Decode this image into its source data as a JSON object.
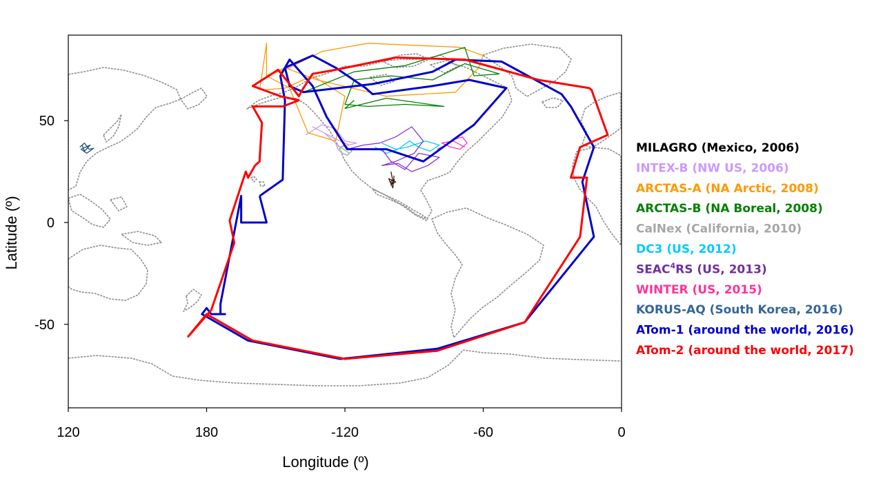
{
  "chart_data": {
    "type": "map",
    "xlabel": "Longitude (º)",
    "ylabel": "Latitude (º)",
    "x_ticks": [
      {
        "value": 120,
        "label": "120"
      },
      {
        "value": 180,
        "label": "180"
      },
      {
        "value": 240,
        "label": "-120"
      },
      {
        "value": 300,
        "label": "-60"
      },
      {
        "value": 360,
        "label": "0"
      }
    ],
    "y_ticks": [
      {
        "value": 50,
        "label": "50"
      },
      {
        "value": 0,
        "label": "0"
      },
      {
        "value": -50,
        "label": "-50"
      }
    ],
    "xlim": [
      120,
      360
    ],
    "ylim": [
      -91,
      92
    ],
    "basemap": "world coastlines (gray)",
    "legend_position": "right",
    "series": [
      {
        "name": "MILAGRO (Mexico, 2006)",
        "color": "#000000",
        "trace_color": "#3b1a0a",
        "lon": [
          260,
          260.5,
          261,
          259.5,
          261.5,
          260,
          262,
          259,
          260.8,
          261.3
        ],
        "lat": [
          25,
          22,
          19,
          20,
          21,
          18.5,
          20,
          21.5,
          17,
          23
        ]
      },
      {
        "name": "INTEX-B (NW US, 2006)",
        "color": "#cc99ff",
        "lon": [
          223,
          230,
          236,
          240,
          245,
          238,
          231,
          226,
          236,
          242
        ],
        "lat": [
          43,
          48,
          46,
          40,
          39,
          37,
          44,
          47,
          41,
          38
        ]
      },
      {
        "name": "ARCTAS-A (NA Arctic, 2008)",
        "color": "#ff9900",
        "lon": [
          203,
          206,
          206,
          216,
          230,
          250,
          290,
          300,
          298,
          288,
          258,
          228,
          214,
          206,
          216,
          224,
          236,
          240,
          226,
          214,
          204
        ],
        "lat": [
          65,
          88,
          72,
          76,
          84,
          88,
          86,
          82,
          76,
          64,
          62,
          70,
          76,
          72,
          66,
          44,
          40,
          62,
          72,
          66,
          65
        ]
      },
      {
        "name": "ARCTAS-B (NA Boreal, 2008)",
        "color": "#008000",
        "lon": [
          222,
          244,
          266,
          292,
          296,
          307,
          292,
          278,
          260,
          244,
          240,
          250,
          266,
          283,
          258,
          240,
          244
        ],
        "lat": [
          64,
          74,
          77,
          86,
          72,
          73,
          78,
          70,
          72,
          70,
          58,
          57,
          58,
          57,
          61,
          56,
          60
        ]
      },
      {
        "name": "CalNex (California, 2010)",
        "color": "#a6a6a6",
        "lon": [
          236,
          237,
          239,
          241,
          243,
          240,
          238,
          242
        ],
        "lat": [
          39,
          36,
          34,
          33,
          35,
          38,
          37,
          34
        ]
      },
      {
        "name": "DC3 (US, 2012)",
        "color": "#00ccff",
        "lon": [
          253,
          258,
          263,
          268,
          272,
          277,
          281,
          275,
          267,
          262,
          256
        ],
        "lat": [
          37,
          34,
          36,
          40,
          37,
          35,
          38,
          40,
          37,
          36,
          39
        ]
      },
      {
        "name": "SEAC⁴RS (US, 2013)",
        "name_prefix": "SEAC",
        "name_sup": "4",
        "name_suffix": "RS (US, 2013)",
        "color": "#7030a0",
        "trace_color": "#8833dd",
        "lon": [
          241,
          248,
          255,
          262,
          269,
          274,
          270,
          262,
          256,
          263,
          269,
          276,
          281,
          272,
          266,
          260,
          256
        ],
        "lat": [
          36,
          38,
          39,
          42,
          47,
          40,
          34,
          30,
          28,
          29,
          25,
          28,
          32,
          34,
          26,
          30,
          36
        ]
      },
      {
        "name": "WINTER (US, 2015)",
        "color": "#ff3399",
        "trace_color": "#ff33cc",
        "lon": [
          280,
          284,
          288,
          291,
          293,
          290,
          286,
          282,
          287,
          292
        ],
        "lat": [
          36,
          38,
          41,
          42,
          39,
          36,
          37,
          39,
          40,
          37
        ]
      },
      {
        "name": "KORUS-AQ (South Korea, 2016)",
        "color": "#336699",
        "trace_color": "#1f4e79",
        "lon": [
          125,
          127,
          129,
          131,
          128,
          125.5,
          129.5,
          127,
          126
        ],
        "lat": [
          37,
          39,
          36,
          36.5,
          34,
          36,
          38,
          35,
          38
        ]
      },
      {
        "name": "ATom-1 (around the world, 2016)",
        "color": "#0000cc",
        "lon": [
          203,
          206,
          204,
          204,
          195,
          195,
          186,
          186,
          188,
          182,
          180,
          178,
          198,
          238,
          280,
          318,
          348,
          343,
          348,
          338,
          334,
          308,
          288,
          278,
          252,
          222,
          216,
          214,
          226,
          236,
          249,
          252,
          278,
          294,
          310,
          296,
          274,
          258,
          241,
          232,
          226,
          216,
          212,
          214,
          213,
          203
        ],
        "lat": [
          13,
          0,
          0,
          0,
          0,
          13,
          -40,
          -45,
          -45,
          -45,
          -42,
          -45,
          -58,
          -67,
          -62,
          -49,
          -7,
          20,
          37,
          57,
          63,
          79,
          80,
          74,
          68,
          64,
          67,
          76,
          82,
          76,
          66,
          63,
          67,
          70,
          66,
          48,
          30,
          36,
          36,
          52,
          67,
          80,
          72,
          60,
          21,
          13
        ]
      },
      {
        "name": "ATom-2 (around the world, 2017)",
        "color": "#ff0000",
        "lon": [
          201,
          198,
          197,
          190,
          192,
          182,
          172,
          180,
          200,
          240,
          280,
          318,
          342,
          345,
          338,
          342,
          354,
          347,
          346,
          324,
          292,
          262,
          236,
          226,
          222,
          220,
          216,
          211,
          200,
          212,
          220,
          213,
          200,
          204,
          203,
          203,
          201
        ],
        "lat": [
          28,
          22,
          25,
          1,
          -10,
          -43,
          -56,
          -45,
          -58,
          -67,
          -63,
          -49,
          -7,
          22,
          22,
          37,
          43,
          65,
          66,
          70,
          80,
          81,
          75,
          73,
          66,
          62,
          68,
          75,
          67,
          62,
          60,
          57,
          57,
          49,
          31,
          30,
          28
        ]
      }
    ]
  }
}
